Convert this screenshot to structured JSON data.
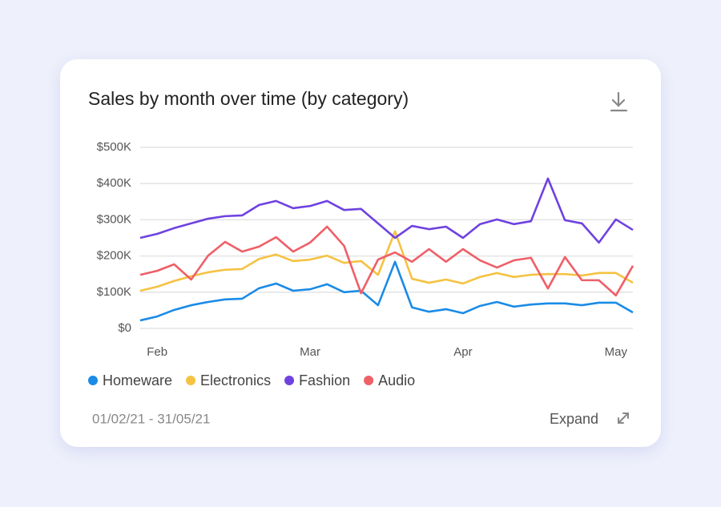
{
  "chart_data": {
    "type": "line",
    "title": "Sales by month over time (by category)",
    "categories": [
      null,
      "Feb",
      null,
      null,
      null,
      null,
      null,
      null,
      null,
      null,
      "Mar",
      null,
      null,
      null,
      null,
      null,
      null,
      null,
      null,
      "Apr",
      null,
      null,
      null,
      null,
      null,
      null,
      null,
      null,
      "May",
      null
    ],
    "series": [
      {
        "name": "Homeware",
        "color": "#1a8be6",
        "values": [
          22000,
          33000,
          51000,
          64000,
          73000,
          80000,
          82000,
          111000,
          124000,
          104000,
          108000,
          122000,
          100000,
          104000,
          64000,
          184000,
          58000,
          46000,
          53000,
          42000,
          62000,
          73000,
          60000,
          66000,
          69000,
          69000,
          64000,
          71000,
          71000,
          44000
        ]
      },
      {
        "name": "Electronics",
        "color": "#f5c242",
        "values": [
          104000,
          115000,
          131000,
          144000,
          155000,
          162000,
          164000,
          192000,
          204000,
          186000,
          190000,
          201000,
          181000,
          186000,
          148000,
          268000,
          137000,
          126000,
          135000,
          124000,
          142000,
          153000,
          142000,
          148000,
          150000,
          150000,
          146000,
          153000,
          153000,
          126000
        ]
      },
      {
        "name": "Fashion",
        "color": "#6f42e0",
        "values": [
          250000,
          261000,
          277000,
          290000,
          303000,
          310000,
          312000,
          341000,
          352000,
          332000,
          338000,
          352000,
          327000,
          330000,
          290000,
          250000,
          283000,
          274000,
          281000,
          250000,
          288000,
          301000,
          288000,
          296000,
          414000,
          299000,
          290000,
          237000,
          301000,
          272000
        ]
      },
      {
        "name": "Audio",
        "color": "#ef5f67",
        "values": [
          148000,
          159000,
          177000,
          135000,
          201000,
          239000,
          212000,
          226000,
          252000,
          212000,
          237000,
          281000,
          228000,
          97000,
          190000,
          210000,
          184000,
          219000,
          184000,
          219000,
          188000,
          168000,
          188000,
          195000,
          110000,
          197000,
          133000,
          133000,
          91000,
          173000
        ]
      }
    ],
    "ylim": [
      0,
      500000
    ],
    "yticks": [
      {
        "value": 0,
        "label": "$0"
      },
      {
        "value": 100000,
        "label": "$100K"
      },
      {
        "value": 200000,
        "label": "$200K"
      },
      {
        "value": 300000,
        "label": "$300K"
      },
      {
        "value": 400000,
        "label": "$400K"
      },
      {
        "value": 500000,
        "label": "$500K"
      }
    ],
    "grid": true,
    "legend": "bottom"
  },
  "date_range": "01/02/21 - 31/05/21",
  "expand_label": "Expand"
}
